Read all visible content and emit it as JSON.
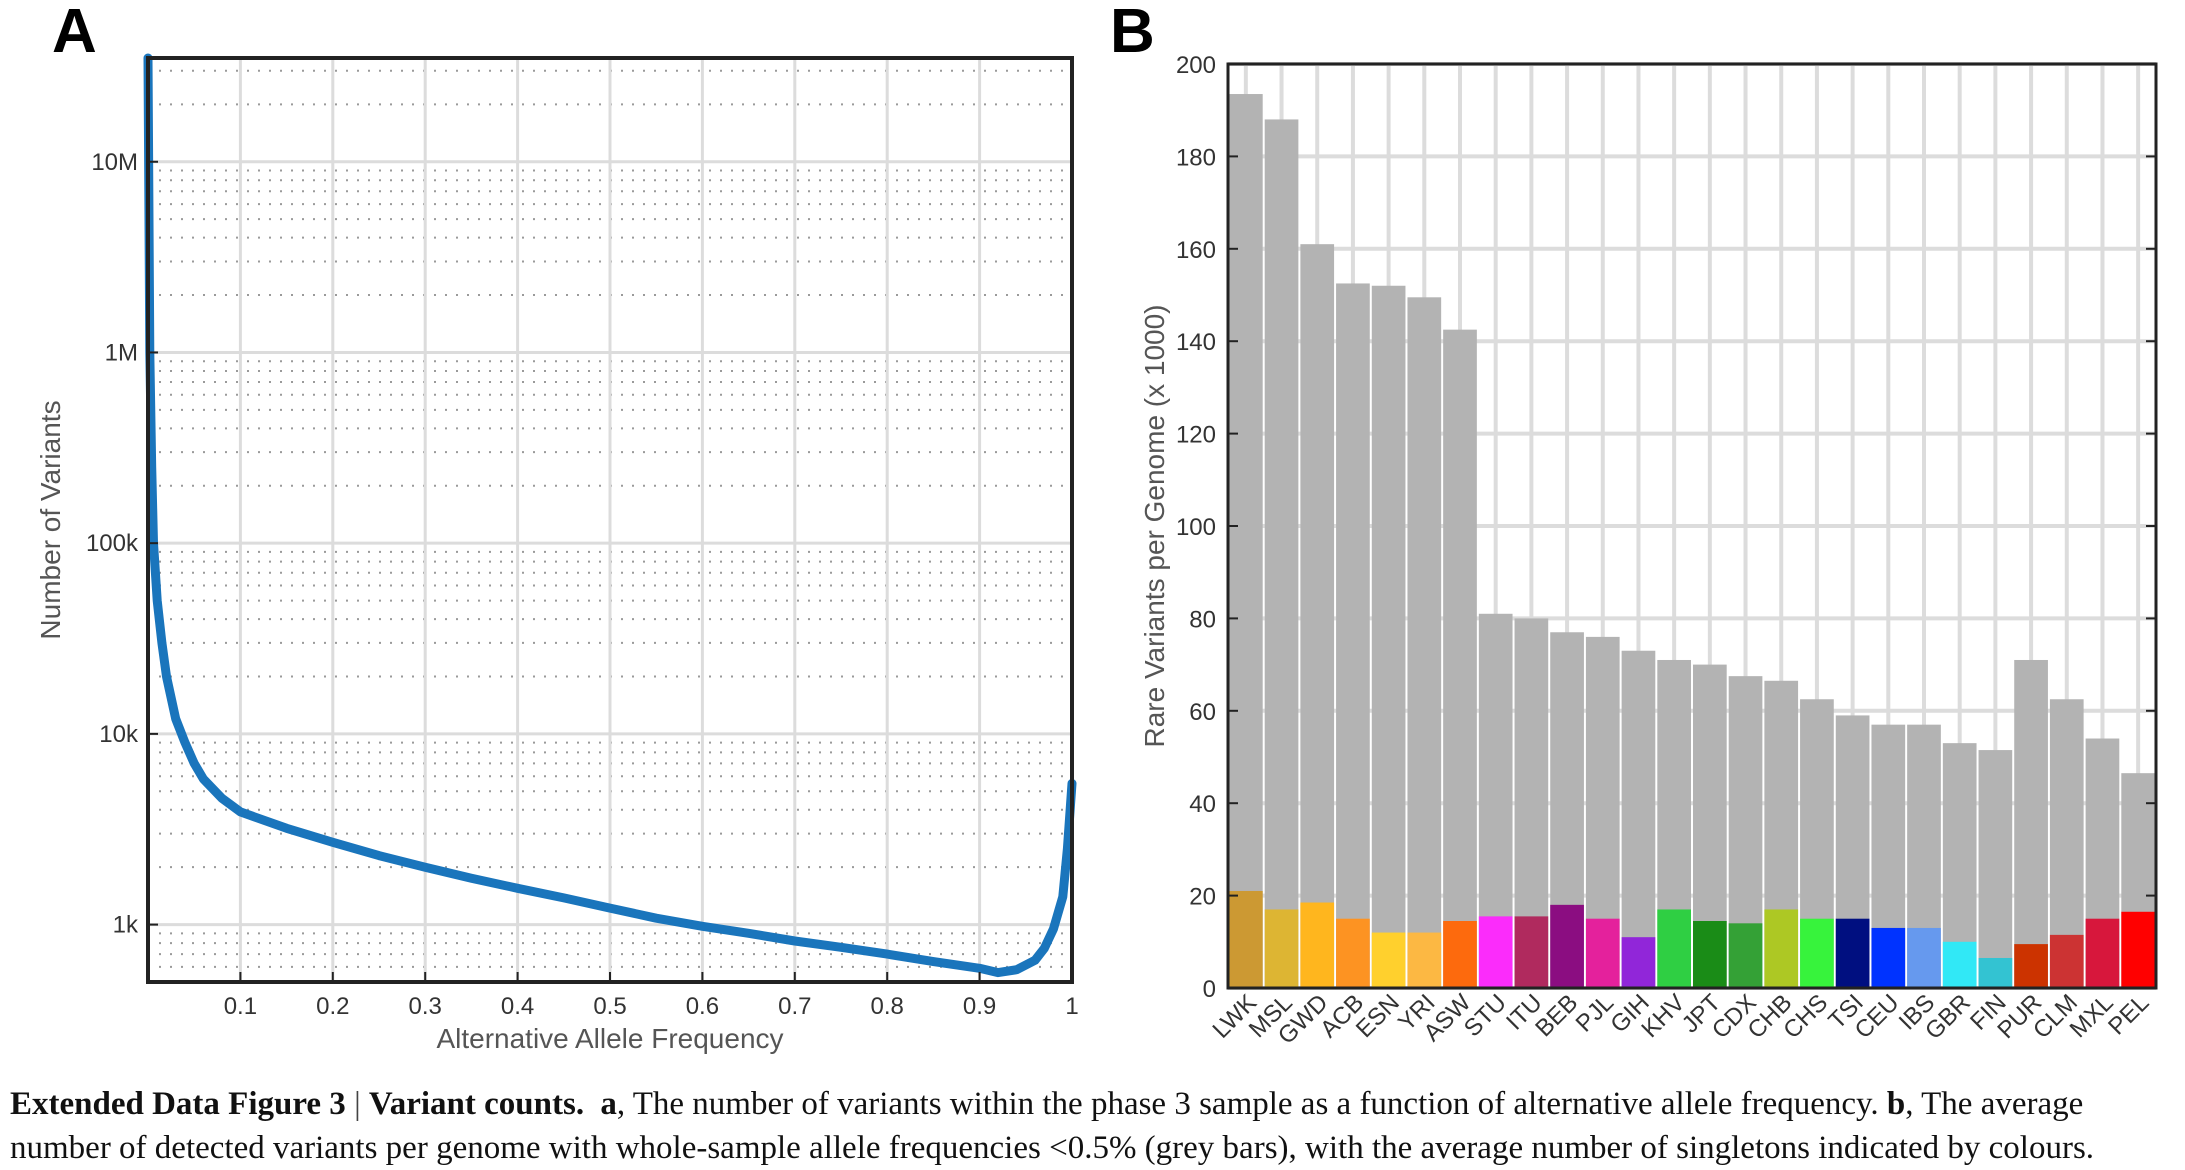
{
  "panels": {
    "a_letter": "A",
    "b_letter": "B"
  },
  "chart_data": [
    {
      "type": "line",
      "panel": "A",
      "xlabel": "Alternative Allele Frequency",
      "ylabel": "Number of Variants",
      "x_scale": "linear",
      "y_scale": "log",
      "xlim": [
        0,
        1
      ],
      "ylim": [
        500,
        35000000
      ],
      "x_ticks": [
        0.1,
        0.2,
        0.3,
        0.4,
        0.5,
        0.6,
        0.7,
        0.8,
        0.9,
        1
      ],
      "x_tick_labels": [
        "0.1",
        "0.2",
        "0.3",
        "0.4",
        "0.5",
        "0.6",
        "0.7",
        "0.8",
        "0.9",
        "1"
      ],
      "y_ticks": [
        1000,
        10000,
        100000,
        1000000,
        10000000
      ],
      "y_tick_labels": [
        "1k",
        "10k",
        "100k",
        "1M",
        "10M"
      ],
      "grid": true,
      "color": "#1a75bc",
      "series": [
        {
          "x": [
            0.0,
            0.002,
            0.004,
            0.006,
            0.008,
            0.01,
            0.015,
            0.02,
            0.03,
            0.04,
            0.05,
            0.06,
            0.08,
            0.1,
            0.15,
            0.2,
            0.25,
            0.3,
            0.35,
            0.4,
            0.45,
            0.5,
            0.55,
            0.6,
            0.65,
            0.7,
            0.75,
            0.8,
            0.85,
            0.9,
            0.92,
            0.94,
            0.96,
            0.97,
            0.98,
            0.99,
            0.995,
            1.0
          ],
          "y": [
            35000000,
            1000000,
            250000,
            100000,
            70000,
            50000,
            30000,
            20000,
            12000,
            9000,
            7000,
            5800,
            4600,
            3900,
            3200,
            2700,
            2300,
            2000,
            1750,
            1550,
            1380,
            1220,
            1080,
            980,
            900,
            820,
            760,
            700,
            640,
            590,
            560,
            580,
            650,
            750,
            950,
            1400,
            2500,
            5500
          ]
        }
      ]
    },
    {
      "type": "bar",
      "panel": "B",
      "ylabel": "Rare Variants per Genome (x 1000)",
      "ylim": [
        0,
        200
      ],
      "y_ticks": [
        0,
        20,
        40,
        60,
        80,
        100,
        120,
        140,
        160,
        180,
        200
      ],
      "grid": true,
      "categories": [
        "LWK",
        "MSL",
        "GWD",
        "ACB",
        "ESN",
        "YRI",
        "ASW",
        "STU",
        "ITU",
        "BEB",
        "PJL",
        "GIH",
        "KHV",
        "JPT",
        "CDX",
        "CHB",
        "CHS",
        "TSI",
        "CEU",
        "IBS",
        "GBR",
        "FIN",
        "PUR",
        "CLM",
        "MXL",
        "PEL"
      ],
      "series": [
        {
          "values": [
            193.5,
            188,
            161,
            152.5,
            152,
            149.5,
            142.5,
            81,
            80,
            77,
            76,
            73,
            71,
            70,
            67.5,
            66.5,
            62.5,
            59,
            57,
            57,
            53,
            51.5,
            71,
            62.5,
            54,
            46.5
          ],
          "color": "#b3b3b3"
        },
        {
          "values": [
            21,
            17,
            18.5,
            15,
            12,
            12,
            14.5,
            15.5,
            15.5,
            18,
            15,
            11,
            17,
            14.5,
            14,
            17,
            15,
            15,
            13,
            13,
            10,
            6.5,
            9.5,
            11.5,
            15,
            16.5
          ],
          "colors": [
            "#cc9933",
            "#ddb533",
            "#ffb61e",
            "#fd9322",
            "#ffd02d",
            "#fcb843",
            "#fd6a0d",
            "#fb2cfb",
            "#b02a5e",
            "#8b0d81",
            "#e4219c",
            "#9126d9",
            "#2fcf43",
            "#1a8c17",
            "#34a136",
            "#adc824",
            "#37f33c",
            "#000f80",
            "#0033ff",
            "#6699ee",
            "#31e8f6",
            "#33c3d2",
            "#cc3300",
            "#cc3333",
            "#d7173c",
            "#ff0000"
          ]
        }
      ]
    }
  ],
  "caption": {
    "label": "Extended Data Figure 3",
    "separator": "|",
    "title": "Variant counts.",
    "a_label": "a",
    "a_text": ", The number of variants within the phase 3 sample as a function of alternative allele frequency.",
    "b_label": "b",
    "b_text": ", The average number of detected variants per genome with whole-sample allele frequencies <0.5% (grey bars), with the average number of singletons indicated by colours."
  }
}
